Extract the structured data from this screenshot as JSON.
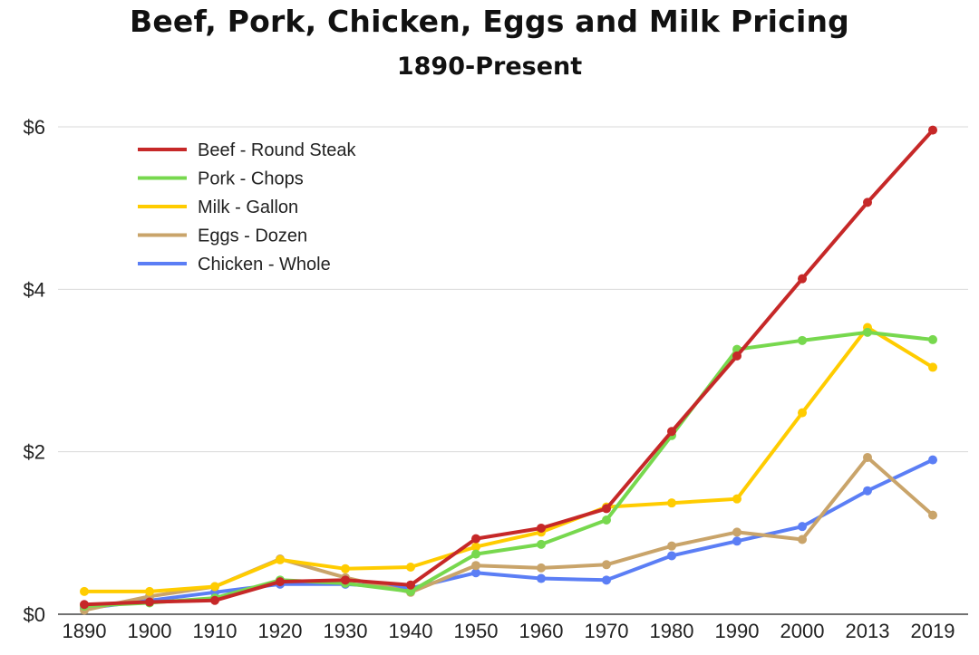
{
  "chart_data": {
    "type": "line",
    "title": "Beef, Pork, Chicken, Eggs and Milk Pricing",
    "subtitle": "1890-Present",
    "xlabel": "",
    "ylabel": "",
    "categories": [
      "1890",
      "1900",
      "1910",
      "1920",
      "1930",
      "1940",
      "1950",
      "1960",
      "1970",
      "1980",
      "1990",
      "2000",
      "2013",
      "2019"
    ],
    "ylim": [
      0,
      6
    ],
    "yticks": [
      0,
      2,
      4,
      6
    ],
    "ytick_labels": [
      "$0",
      "$2",
      "$4",
      "$6"
    ],
    "grid": true,
    "legend_position": "top-left",
    "series": [
      {
        "name": "Beef - Round Steak",
        "color": "#c62828",
        "values": [
          0.12,
          0.15,
          0.17,
          0.4,
          0.42,
          0.36,
          0.93,
          1.06,
          1.3,
          2.25,
          3.18,
          4.13,
          5.07,
          5.96
        ]
      },
      {
        "name": "Pork - Chops",
        "color": "#77d84e",
        "values": [
          0.1,
          0.14,
          0.2,
          0.42,
          0.38,
          0.28,
          0.74,
          0.86,
          1.16,
          2.2,
          3.26,
          3.37,
          3.47,
          3.38
        ]
      },
      {
        "name": "Milk - Gallon",
        "color": "#ffcc00",
        "values": [
          0.28,
          0.28,
          0.34,
          0.67,
          0.56,
          0.58,
          0.83,
          1.01,
          1.32,
          1.37,
          1.42,
          2.48,
          3.53,
          3.04
        ]
      },
      {
        "name": "Eggs - Dozen",
        "color": "#c9a46a",
        "values": [
          0.05,
          0.22,
          0.34,
          0.68,
          0.45,
          0.27,
          0.6,
          0.57,
          0.61,
          0.84,
          1.01,
          0.92,
          1.93,
          1.22
        ]
      },
      {
        "name": "Chicken - Whole",
        "color": "#5b7ef5",
        "values": [
          0.07,
          0.17,
          0.27,
          0.37,
          0.37,
          0.32,
          0.51,
          0.44,
          0.42,
          0.72,
          0.9,
          1.08,
          1.52,
          1.9
        ]
      }
    ]
  }
}
